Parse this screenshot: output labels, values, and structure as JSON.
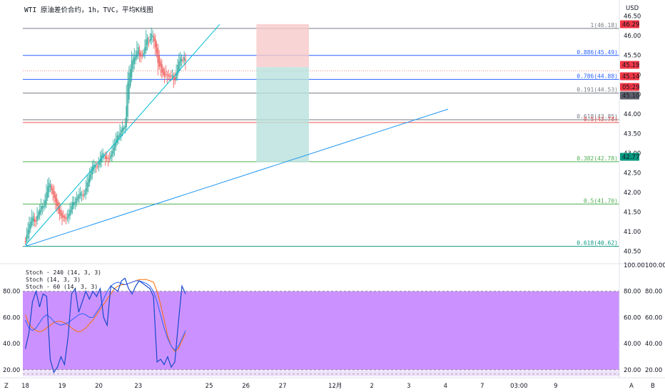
{
  "header": {
    "title": "WTI 原油差价合约，1h，TVC，平均K线图",
    "currency": "USD"
  },
  "colors": {
    "up": "#26a69a",
    "down": "#ef5350",
    "fib_gray": "#787b86",
    "fib_blue": "#2962ff",
    "fib_green": "#4caf50",
    "fib_teal": "#089981",
    "trend": "#00bcd4",
    "stoch_fill": "#c27fff",
    "stoch_k": "#2962ff",
    "stoch_d": "#ff6d00"
  },
  "chart_data": [
    {
      "type": "candlestick",
      "symbol": "WTI 原油差价合约",
      "interval": "1h",
      "ylim": [
        40.25,
        46.65
      ],
      "y_ticks": [
        46.5,
        46.0,
        45.5,
        45.0,
        44.5,
        44.0,
        43.5,
        43.0,
        42.5,
        42.0,
        41.5,
        41.0,
        40.5
      ],
      "x_ticks": [
        "18",
        "19",
        "20",
        "23",
        "25",
        "26",
        "27",
        "12月",
        "2",
        "3",
        "4",
        "7",
        "03:00",
        "9"
      ],
      "x_tick_bars": [
        0,
        28,
        56,
        86,
        140,
        168,
        196,
        236,
        264,
        292,
        320,
        348,
        376,
        404
      ],
      "closes": [
        40.8,
        41.0,
        41.1,
        41.3,
        41.2,
        41.5,
        41.3,
        41.2,
        41.3,
        41.5,
        41.5,
        41.6,
        41.7,
        41.6,
        41.7,
        41.9,
        42.1,
        42.2,
        42.3,
        42.1,
        42.0,
        41.9,
        41.8,
        41.7,
        41.6,
        41.5,
        41.4,
        41.4,
        41.3,
        41.4,
        41.3,
        41.3,
        41.4,
        41.5,
        41.6,
        41.7,
        41.8,
        41.7,
        41.8,
        41.9,
        41.9,
        42.0,
        42.0,
        41.9,
        41.9,
        42.0,
        42.2,
        42.3,
        42.4,
        42.5,
        42.6,
        42.7,
        42.7,
        42.7,
        42.6,
        42.7,
        42.8,
        42.9,
        43.0,
        43.0,
        42.9,
        42.8,
        42.9,
        42.8,
        42.9,
        43.0,
        43.1,
        43.2,
        43.3,
        43.4,
        43.5,
        43.4,
        43.6,
        43.6,
        43.7,
        43.6,
        43.8,
        44.6,
        45.0,
        45.1,
        45.2,
        45.5,
        45.3,
        45.6,
        45.4,
        45.8,
        45.6,
        45.4,
        45.5,
        45.5,
        45.6,
        45.8,
        46.0,
        45.9,
        45.8,
        46.0,
        46.1,
        45.9,
        45.8,
        45.6,
        45.5,
        45.1,
        45.3,
        45.1,
        45.0,
        45.0,
        44.9,
        45.1,
        44.9,
        45.0,
        44.9,
        45.0,
        45.0,
        44.8,
        44.9,
        45.2,
        45.3,
        45.4,
        45.5,
        45.3,
        45.4,
        45.5,
        45.2
      ],
      "fib_levels": [
        {
          "ratio": "1",
          "value": 46.18,
          "label": "1(46.18)"
        },
        {
          "ratio": "0.886",
          "value": 45.49,
          "label": "0.886(45.49)"
        },
        {
          "ratio": "0.786",
          "value": 44.88,
          "label": "0.786(44.88)"
        },
        {
          "ratio": "0.191",
          "value": 44.53,
          "label": "0.191(44.53)"
        },
        {
          "ratio": "0.618",
          "value": 43.85,
          "label": "0.618(43.85)"
        },
        {
          "ratio": "0.5",
          "value": 43.78,
          "label": "0.5(43.78)"
        },
        {
          "ratio": "0.382",
          "value": 42.78,
          "label": "0.382(42.78)"
        },
        {
          "ratio": "0.5",
          "value": 41.7,
          "label": "0.5(41.70)"
        },
        {
          "ratio": "0.618",
          "value": 40.62,
          "label": "0.618(40.62)"
        }
      ],
      "price_tags": [
        {
          "value": 46.29,
          "label": "46.29",
          "color": "#f23645"
        },
        {
          "value": 45.19,
          "label": "45.19",
          "color": "#f23645"
        },
        {
          "value": 45.14,
          "label": "45.14",
          "color": "#f23645"
        },
        {
          "value": 44.88,
          "label": "05:29",
          "color": "#f23645"
        },
        {
          "value": 44.53,
          "label": "45.10",
          "color": "#5d606b"
        },
        {
          "value": 42.77,
          "label": "42.77",
          "color": "#089981"
        }
      ],
      "position": {
        "entry": 45.19,
        "stop": 46.29,
        "target": 42.77,
        "start_bar": 176,
        "end_bar": 216
      },
      "trendlines": [
        {
          "from": [
            0,
            40.65
          ],
          "to": [
            148,
            46.28
          ]
        },
        {
          "from": [
            0,
            40.62
          ],
          "to": [
            322,
            44.12
          ]
        }
      ]
    },
    {
      "type": "line",
      "indicator": "Stochastic",
      "ylim": [
        15,
        100
      ],
      "y_ticks": [
        100,
        80,
        60,
        40,
        20
      ],
      "y_tick_labels": [
        "100.00",
        "80.00",
        "60.00",
        "40.00",
        "20.00"
      ],
      "bands": [
        80,
        20
      ],
      "legend": [
        "Stoch · 240 (14, 3, 3)",
        "Stoch (14, 3, 3)",
        "Stoch · 60 (14, 3, 3)"
      ],
      "series": [
        {
          "name": "Stoch · 240 (14, 3, 3)",
          "values": [
            62,
            55,
            52,
            50,
            49,
            50,
            52,
            54,
            56,
            57,
            57,
            56,
            54,
            52,
            50,
            49,
            50,
            52,
            55,
            58,
            62,
            66,
            70,
            74,
            78,
            82,
            84,
            85,
            85,
            86,
            87,
            88,
            89,
            89,
            89,
            88,
            87,
            80,
            70,
            58,
            46,
            38,
            34,
            36,
            42,
            48
          ]
        },
        {
          "name": "Stoch (14, 3, 3)",
          "values": [
            58,
            52,
            50,
            52,
            56,
            60,
            62,
            60,
            57,
            55,
            54,
            55,
            56,
            58,
            60,
            62,
            63,
            62,
            60,
            60,
            64,
            68,
            74,
            80,
            84,
            86,
            87,
            86,
            85,
            86,
            87,
            88,
            88,
            87,
            86,
            84,
            80,
            72,
            62,
            52,
            44,
            38,
            35,
            38,
            44,
            50
          ]
        },
        {
          "name": "Stoch · 60 (14, 3, 3)",
          "values": [
            36,
            48,
            72,
            80,
            68,
            78,
            76,
            28,
            18,
            22,
            30,
            24,
            45,
            78,
            82,
            64,
            72,
            80,
            74,
            80,
            76,
            82,
            60,
            54,
            84,
            82,
            80,
            88,
            90,
            82,
            78,
            84,
            88,
            86,
            84,
            82,
            76,
            26,
            28,
            24,
            30,
            22,
            26,
            56,
            84,
            78
          ]
        }
      ]
    }
  ]
}
